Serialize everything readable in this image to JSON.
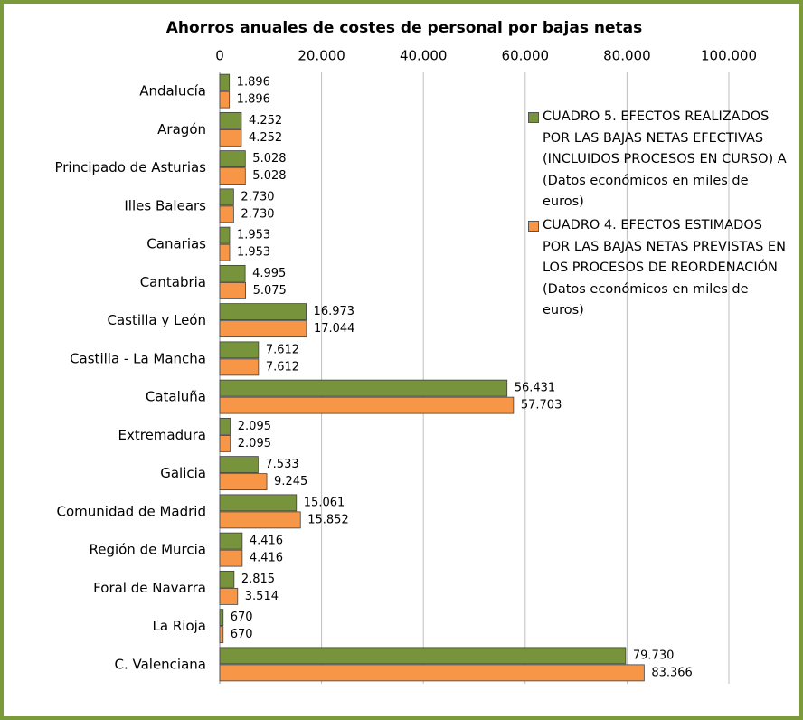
{
  "chart_data": {
    "type": "bar",
    "orientation": "horizontal",
    "title": "Ahorros anuales de costes de personal por bajas netas",
    "categories": [
      "Andalucía",
      "Aragón",
      "Principado de Asturias",
      "Illes Balears",
      "Canarias",
      "Cantabria",
      "Castilla y León",
      "Castilla - La Mancha",
      "Cataluña",
      "Extremadura",
      "Galicia",
      "Comunidad de Madrid",
      "Región de Murcia",
      "Foral de Navarra",
      "La Rioja",
      "C. Valenciana"
    ],
    "series": [
      {
        "name": "CUADRO 5. EFECTOS REALIZADOS POR LAS BAJAS NETAS EFECTIVAS (INCLUIDOS PROCESOS EN CURSO) A (Datos económicos en miles de euros)",
        "color": "#77933c",
        "values": [
          1896,
          4252,
          5028,
          2730,
          1953,
          4995,
          16973,
          7612,
          56431,
          2095,
          7533,
          15061,
          4416,
          2815,
          670,
          79730
        ],
        "value_labels": [
          "1.896",
          "4.252",
          "5.028",
          "2.730",
          "1.953",
          "4.995",
          "16.973",
          "7.612",
          "56.431",
          "2.095",
          "7.533",
          "15.061",
          "4.416",
          "2.815",
          "670",
          "79.730"
        ]
      },
      {
        "name": "CUADRO 4. EFECTOS ESTIMADOS POR LAS BAJAS NETAS PREVISTAS EN LOS PROCESOS DE REORDENACIÓN (Datos económicos en miles de euros)",
        "color": "#f79646",
        "values": [
          1896,
          4252,
          5028,
          2730,
          1953,
          5075,
          17044,
          7612,
          57703,
          2095,
          9245,
          15852,
          4416,
          3514,
          670,
          83366
        ],
        "value_labels": [
          "1.896",
          "4.252",
          "5.028",
          "2.730",
          "1.953",
          "5.075",
          "17.044",
          "7.612",
          "57.703",
          "2.095",
          "9.245",
          "15.852",
          "4.416",
          "3.514",
          "670",
          "83.366"
        ]
      }
    ],
    "xlim": [
      0,
      100000
    ],
    "xticks": [
      0,
      {
        "value": 20000,
        "label": "20.000"
      },
      {
        "value": 40000,
        "label": "40.000"
      },
      {
        "value": 60000,
        "label": "60.000"
      },
      {
        "value": 80000,
        "label": "80.000"
      },
      {
        "value": 100000,
        "label": "100.000"
      }
    ],
    "grid": true
  }
}
